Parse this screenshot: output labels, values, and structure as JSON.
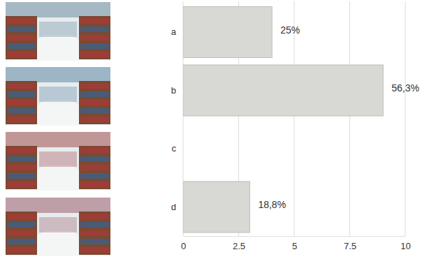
{
  "chart_data": {
    "type": "bar",
    "orientation": "horizontal",
    "categories": [
      "a",
      "b",
      "c",
      "d"
    ],
    "values": [
      4,
      9,
      0,
      3
    ],
    "percent_values": [
      25,
      56.3,
      null,
      18.8
    ],
    "percent_labels": [
      "25%",
      "56,3%",
      null,
      "18,8%"
    ],
    "color": "#d8d8d4",
    "xlim": [
      0,
      10
    ],
    "xticks": [
      0,
      2.5,
      5,
      7.5,
      10
    ],
    "grid": true
  }
}
